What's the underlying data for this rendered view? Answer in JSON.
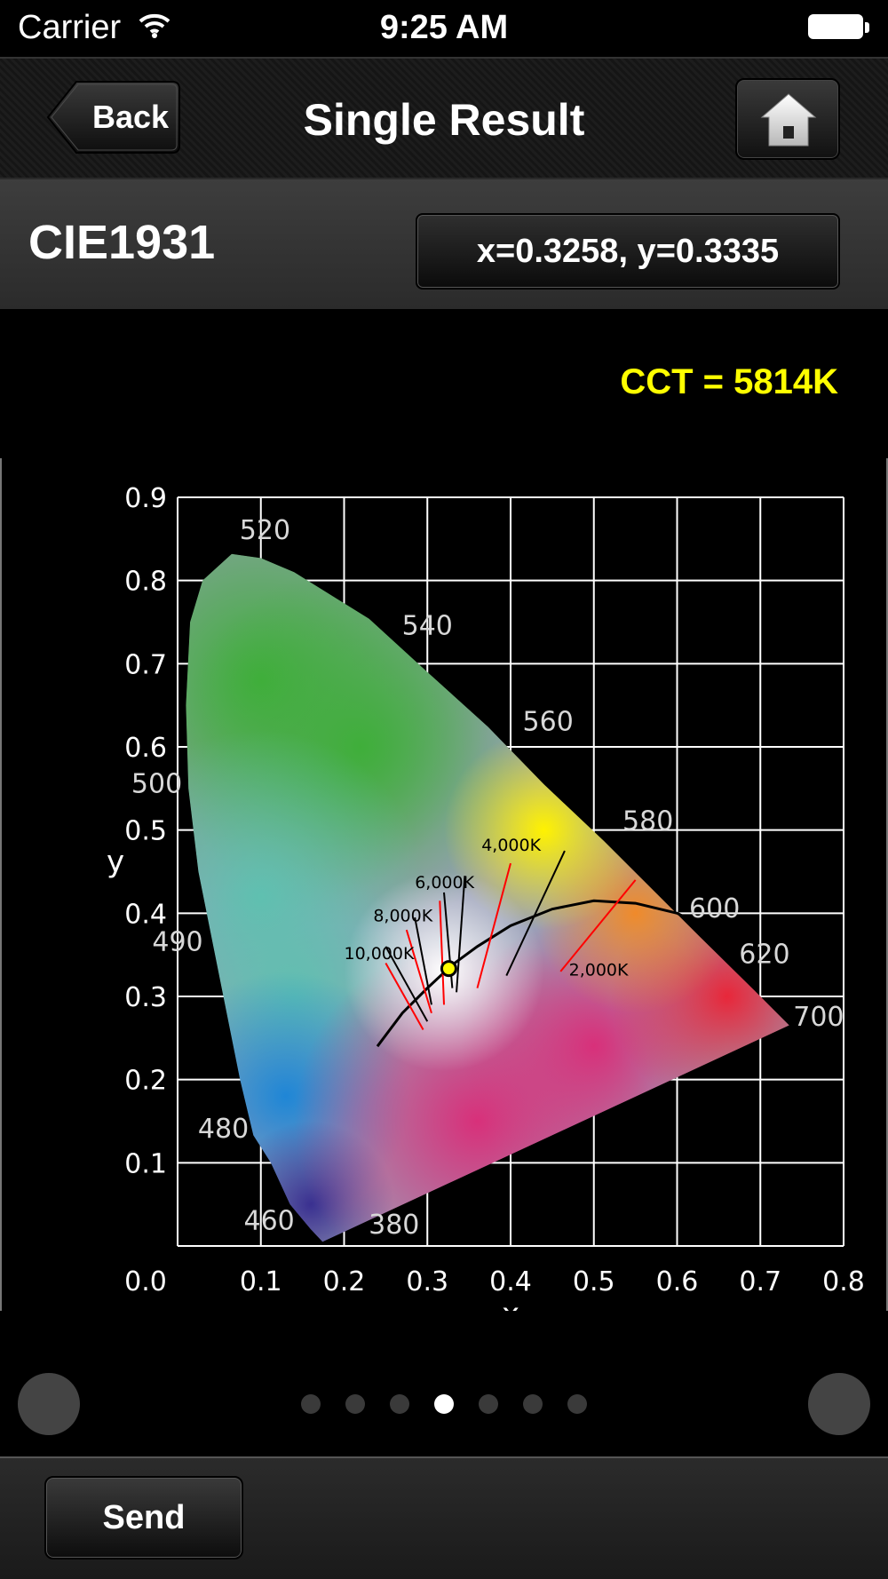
{
  "status_bar": {
    "carrier": "Carrier",
    "time": "9:25 AM"
  },
  "nav": {
    "back_label": "Back",
    "title": "Single Result"
  },
  "header": {
    "diagram_label": "CIE1931",
    "coordinates": "x=0.3258, y=0.3335"
  },
  "cct_text": "CCT = 5814K",
  "chart_data": {
    "type": "scatter",
    "title": "",
    "xlabel": "x",
    "ylabel": "y",
    "xlim": [
      0.0,
      0.8
    ],
    "ylim": [
      0.0,
      0.9
    ],
    "grid": true,
    "x_ticks": [
      "0.1",
      "0.2",
      "0.3",
      "0.4",
      "0.5",
      "0.6",
      "0.7",
      "0.8"
    ],
    "x_origin_label": "0.0",
    "y_ticks": [
      "0.0",
      "0.1",
      "0.2",
      "0.3",
      "0.4",
      "0.5",
      "0.6",
      "0.7",
      "0.8",
      "0.9"
    ],
    "wavelength_labels": [
      {
        "text": "520",
        "x": 0.105,
        "y": 0.85
      },
      {
        "text": "540",
        "x": 0.3,
        "y": 0.735
      },
      {
        "text": "560",
        "x": 0.445,
        "y": 0.62
      },
      {
        "text": "580",
        "x": 0.565,
        "y": 0.5
      },
      {
        "text": "600",
        "x": 0.645,
        "y": 0.395
      },
      {
        "text": "620",
        "x": 0.705,
        "y": 0.34
      },
      {
        "text": "700",
        "x": 0.77,
        "y": 0.265
      },
      {
        "text": "500",
        "x": -0.025,
        "y": 0.545
      },
      {
        "text": "490",
        "x": 0.0,
        "y": 0.355
      },
      {
        "text": "480",
        "x": 0.055,
        "y": 0.13
      },
      {
        "text": "460",
        "x": 0.11,
        "y": 0.02
      },
      {
        "text": "380",
        "x": 0.26,
        "y": 0.015
      }
    ],
    "locus": [
      [
        0.1741,
        0.005
      ],
      [
        0.16,
        0.02
      ],
      [
        0.135,
        0.05
      ],
      [
        0.112,
        0.1
      ],
      [
        0.091,
        0.133
      ],
      [
        0.075,
        0.2
      ],
      [
        0.055,
        0.3
      ],
      [
        0.045,
        0.35
      ],
      [
        0.025,
        0.45
      ],
      [
        0.013,
        0.55
      ],
      [
        0.01,
        0.65
      ],
      [
        0.015,
        0.75
      ],
      [
        0.03,
        0.8
      ],
      [
        0.065,
        0.832
      ],
      [
        0.1,
        0.827
      ],
      [
        0.14,
        0.81
      ],
      [
        0.23,
        0.754
      ],
      [
        0.3,
        0.69
      ],
      [
        0.373,
        0.624
      ],
      [
        0.44,
        0.555
      ],
      [
        0.512,
        0.487
      ],
      [
        0.575,
        0.424
      ],
      [
        0.627,
        0.372
      ],
      [
        0.692,
        0.308
      ],
      [
        0.7347,
        0.2653
      ]
    ],
    "planckian_locus": [
      [
        0.24,
        0.24
      ],
      [
        0.27,
        0.28
      ],
      [
        0.3,
        0.31
      ],
      [
        0.33,
        0.338
      ],
      [
        0.36,
        0.36
      ],
      [
        0.4,
        0.385
      ],
      [
        0.45,
        0.405
      ],
      [
        0.5,
        0.415
      ],
      [
        0.55,
        0.412
      ],
      [
        0.6,
        0.4
      ],
      [
        0.64,
        0.38
      ],
      [
        0.66,
        0.365
      ]
    ],
    "isotherms": [
      {
        "label": "10,000K",
        "color": "#000000",
        "x1": 0.25,
        "y1": 0.36,
        "x2": 0.3,
        "y2": 0.27
      },
      {
        "label": "",
        "color": "#ff0000",
        "x1": 0.25,
        "y1": 0.34,
        "x2": 0.295,
        "y2": 0.26
      },
      {
        "label": "8,000K",
        "color": "#000000",
        "x1": 0.285,
        "y1": 0.395,
        "x2": 0.305,
        "y2": 0.29
      },
      {
        "label": "",
        "color": "#ff0000",
        "x1": 0.275,
        "y1": 0.38,
        "x2": 0.305,
        "y2": 0.28
      },
      {
        "label": "6,000K",
        "color": "#000000",
        "x1": 0.32,
        "y1": 0.425,
        "x2": 0.33,
        "y2": 0.31
      },
      {
        "label": "",
        "color": "#ff0000",
        "x1": 0.315,
        "y1": 0.415,
        "x2": 0.32,
        "y2": 0.29
      },
      {
        "label": "",
        "color": "#000000",
        "x1": 0.345,
        "y1": 0.445,
        "x2": 0.335,
        "y2": 0.305
      },
      {
        "label": "4,000K",
        "color": "#ff0000",
        "x1": 0.4,
        "y1": 0.46,
        "x2": 0.36,
        "y2": 0.31
      },
      {
        "label": "",
        "color": "#000000",
        "x1": 0.465,
        "y1": 0.475,
        "x2": 0.395,
        "y2": 0.325
      },
      {
        "label": "2,000K",
        "color": "#ff0000",
        "x1": 0.55,
        "y1": 0.44,
        "x2": 0.46,
        "y2": 0.33
      }
    ],
    "isotherm_label_positions": [
      {
        "label": "10,000K",
        "x": 0.2,
        "y": 0.345
      },
      {
        "label": "8,000K",
        "x": 0.235,
        "y": 0.39
      },
      {
        "label": "6,000K",
        "x": 0.285,
        "y": 0.43
      },
      {
        "label": "4,000K",
        "x": 0.365,
        "y": 0.475
      },
      {
        "label": "2,000K",
        "x": 0.47,
        "y": 0.325
      }
    ],
    "measured_point": {
      "x": 0.3258,
      "y": 0.3335,
      "color": "#ffff00"
    }
  },
  "pager": {
    "pages": 7,
    "active_index": 3
  },
  "bottom": {
    "send_label": "Send"
  },
  "colors": {
    "accent_yellow": "#ffff00",
    "background": "#000000"
  }
}
